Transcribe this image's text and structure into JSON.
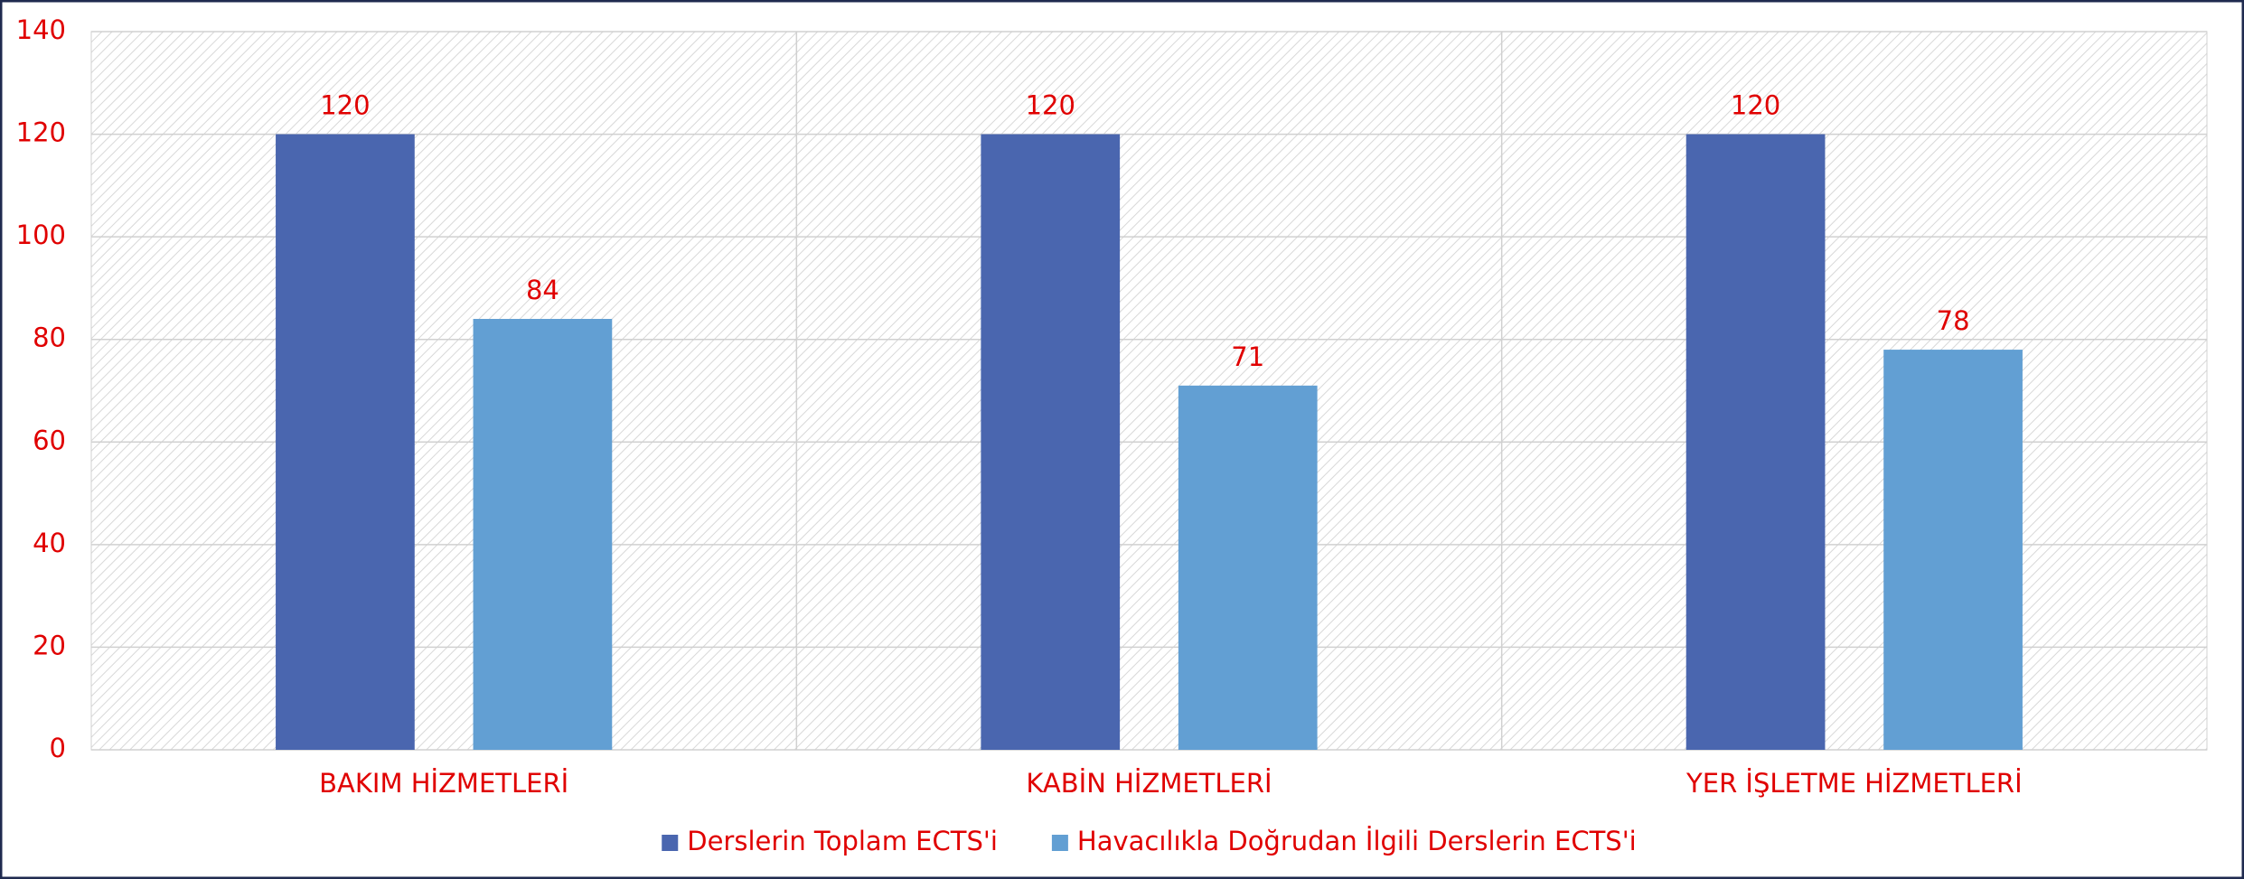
{
  "chart_data": {
    "type": "bar",
    "categories": [
      "BAKIM HİZMETLERİ",
      "KABİN HİZMETLERİ",
      "YER İŞLETME HİZMETLERİ"
    ],
    "series": [
      {
        "name": "Derslerin Toplam ECTS'i",
        "color": "#4a66af",
        "values": [
          120,
          120,
          120
        ]
      },
      {
        "name": "Havacılıkla Doğrudan İlgili Derslerin ECTS'i",
        "color": "#629fd3",
        "values": [
          84,
          71,
          78
        ]
      }
    ],
    "ylim": [
      0,
      140
    ],
    "yticks": [
      0,
      20,
      40,
      60,
      80,
      100,
      120,
      140
    ],
    "grid": true,
    "legend": "bottom"
  }
}
